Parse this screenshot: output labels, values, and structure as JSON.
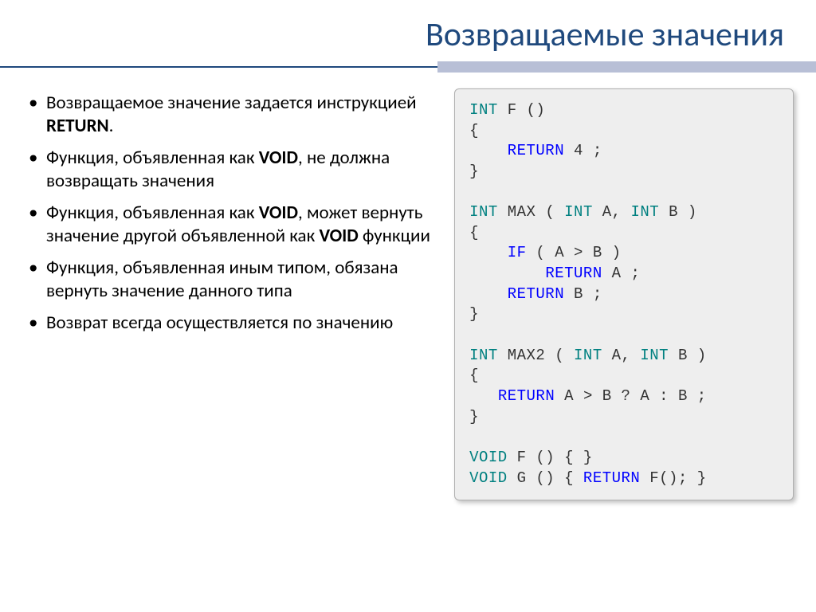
{
  "title": "Возвращаемые значения",
  "colors": {
    "title": "#1f497d",
    "rule_line": "#1f497d",
    "rule_block": "#b8bfd6",
    "code_bg": "#eeeeee",
    "code_border": "#b0b0b0",
    "kw_type": "#008080",
    "kw_stmt": "#0000ff"
  },
  "bullets": [
    {
      "prefix": "Возвращаемое значение задается инструкцией ",
      "bold": "RETURN",
      "suffix": "."
    },
    {
      "prefix": "Функция, объявленная как ",
      "bold": "VOID",
      "suffix": ", не должна возвращать значения"
    },
    {
      "prefix": "Функция, объявленная как ",
      "bold": "VOID",
      "mid": ", может вернуть значение другой объявленной как ",
      "bold2": "VOID",
      "suffix": " функции"
    },
    {
      "prefix": "Функция, объявленная иным типом, обязана вернуть значение данного типа",
      "bold": "",
      "suffix": ""
    },
    {
      "prefix": "Возврат всегда осуществляется по значению",
      "bold": "",
      "suffix": ""
    }
  ],
  "code": {
    "kw_int": "INT",
    "kw_void": "VOID",
    "kw_return": "RETURN",
    "kw_if": "IF",
    "f1_sig": " F ()",
    "f1_body": " 4 ;",
    "max_name": " MAX ( ",
    "p_a": " A, ",
    "p_b": " B )",
    "cond": " ( A > B )",
    "ret_a": " A ;",
    "ret_b": " B ;",
    "max2_name": " MAX2 ( ",
    "ternary": " A > B ? A : B ;",
    "void_f": " F () { }",
    "void_g_pre": " G () { ",
    "void_g_post": " F(); }"
  },
  "typography": {
    "title_fontsize": 42,
    "bullet_fontsize": 23,
    "code_fontsize": 19
  }
}
